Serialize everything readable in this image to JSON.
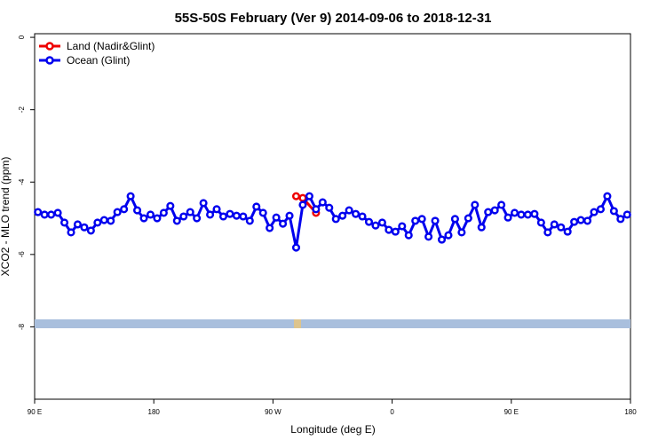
{
  "chart_data": {
    "type": "line",
    "title": "55S-50S February (Ver 9)   2014-09-06 to 2018-12-31",
    "xlabel": "Longitude (deg E)",
    "ylabel": "XCO2 - MLO trend (ppm)",
    "xlim": [
      90,
      540
    ],
    "xticks": [
      {
        "value": 90,
        "label": "90 E"
      },
      180,
      {
        "value": 270,
        "label": "90 W"
      },
      {
        "value": 360,
        "label": "0"
      },
      {
        "value": 450,
        "label": "90 E"
      },
      {
        "value": 540,
        "label": "180"
      }
    ],
    "ylim": [
      -10,
      0.1
    ],
    "yticks": [
      0,
      -2,
      -4,
      -6,
      -8
    ],
    "legend": "top-left",
    "series": [
      {
        "name": "Land (Nadir&Glint)",
        "color": "#ee0000",
        "x": [
          287.5,
          292.5,
          302.5
        ],
        "values": [
          -4.39,
          -4.44,
          -4.85
        ]
      },
      {
        "name": "Ocean (Glint)",
        "color": "#0000ee",
        "x": [
          92.5,
          97.5,
          102.5,
          107.5,
          112.5,
          117.5,
          122.5,
          127.5,
          132.5,
          137.5,
          142.5,
          147.5,
          152.5,
          157.5,
          162.5,
          167.5,
          172.5,
          177.5,
          182.5,
          187.5,
          192.5,
          197.5,
          202.5,
          207.5,
          212.5,
          217.5,
          222.5,
          227.5,
          232.5,
          237.5,
          242.5,
          247.5,
          252.5,
          257.5,
          262.5,
          267.5,
          272.5,
          277.5,
          282.5,
          287.5,
          292.5,
          297.5,
          302.5,
          307.5,
          312.5,
          317.5,
          322.5,
          327.5,
          332.5,
          337.5,
          342.5,
          347.5,
          352.5,
          357.5,
          362.5,
          367.5,
          372.5,
          377.5,
          382.5,
          387.5,
          392.5,
          397.5,
          402.5,
          407.5,
          412.5,
          417.5,
          422.5,
          427.5,
          432.5,
          437.5,
          442.5,
          447.5,
          452.5,
          457.5,
          462.5,
          467.5,
          472.5,
          477.5,
          482.5,
          487.5,
          492.5,
          497.5,
          502.5,
          507.5,
          512.5,
          517.5,
          522.5,
          527.5,
          532.5,
          537.5
        ],
        "values": [
          -4.83,
          -4.9,
          -4.9,
          -4.85,
          -5.12,
          -5.39,
          -5.17,
          -5.25,
          -5.34,
          -5.12,
          -5.05,
          -5.07,
          -4.83,
          -4.75,
          -4.39,
          -4.78,
          -5.0,
          -4.9,
          -5.0,
          -4.85,
          -4.66,
          -5.07,
          -4.95,
          -4.83,
          -5.0,
          -4.58,
          -4.9,
          -4.75,
          -4.95,
          -4.88,
          -4.93,
          -4.95,
          -5.07,
          -4.68,
          -4.85,
          -5.27,
          -4.98,
          -5.15,
          -4.93,
          -5.81,
          -4.63,
          -4.39,
          -4.75,
          -4.56,
          -4.71,
          -5.02,
          -4.93,
          -4.78,
          -4.88,
          -4.95,
          -5.1,
          -5.2,
          -5.12,
          -5.32,
          -5.37,
          -5.22,
          -5.47,
          -5.07,
          -5.02,
          -5.51,
          -5.07,
          -5.59,
          -5.47,
          -5.02,
          -5.39,
          -5.0,
          -4.63,
          -5.25,
          -4.83,
          -4.78,
          -4.63,
          -4.98,
          -4.85,
          -4.9,
          -4.9,
          -4.88,
          -5.12,
          -5.39,
          -5.17,
          -5.25,
          -5.37,
          -5.1,
          -5.05,
          -5.07,
          -4.83,
          -4.75,
          -4.39,
          -4.8,
          -5.02,
          -4.9
        ]
      }
    ]
  }
}
